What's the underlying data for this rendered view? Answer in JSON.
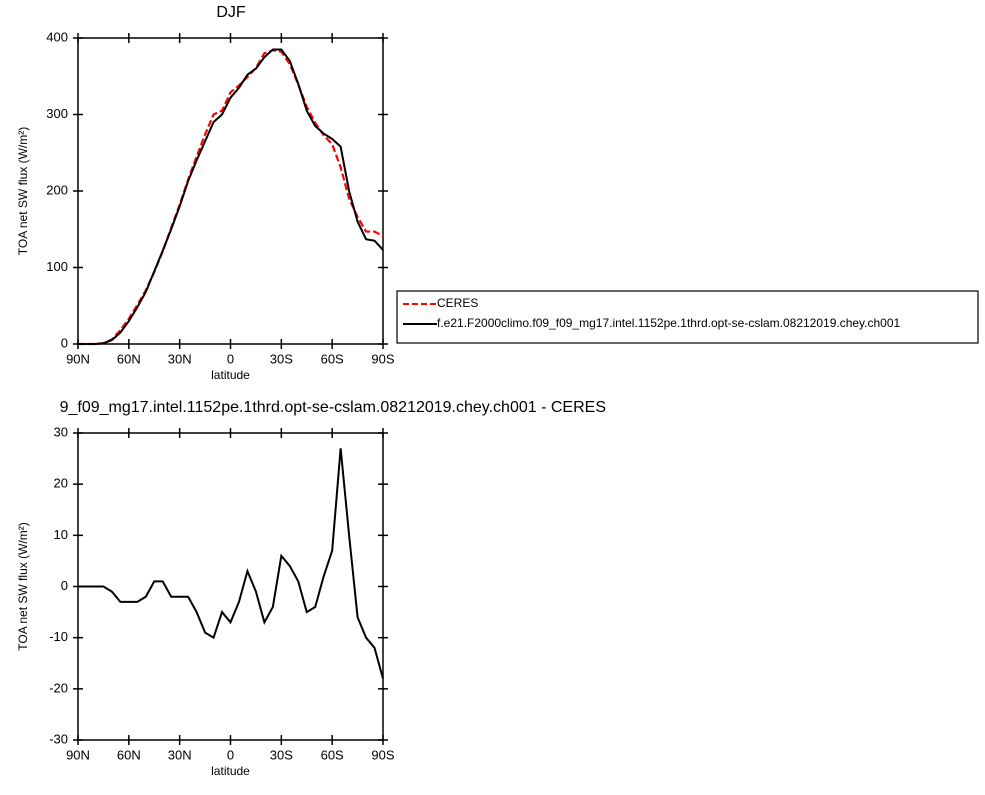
{
  "chart_data": [
    {
      "type": "line",
      "title": "DJF",
      "xlabel": "latitude",
      "ylabel": "TOA net SW flux (W/m²)",
      "x": [
        90,
        85,
        80,
        75,
        70,
        65,
        60,
        55,
        50,
        45,
        40,
        35,
        30,
        25,
        20,
        15,
        10,
        5,
        0,
        -5,
        -10,
        -15,
        -20,
        -25,
        -30,
        -35,
        -40,
        -45,
        -50,
        -55,
        -60,
        -65,
        -70,
        -75,
        -80,
        -85,
        -90
      ],
      "series": [
        {
          "name": "CERES",
          "color": "#ff0000",
          "dash": true,
          "values": [
            0,
            0,
            0,
            1,
            6,
            18,
            33,
            51,
            70,
            94,
            121,
            152,
            182,
            215,
            245,
            274,
            300,
            305,
            329,
            338,
            349,
            361,
            380,
            384,
            382,
            366,
            339,
            310,
            289,
            273,
            261,
            231,
            190,
            166,
            147,
            147,
            141
          ]
        },
        {
          "name": "f.e21.F2000climo.f09_f09_mg17.intel.1152pe.1thrd.opt-se-cslam.08212019.chey.ch001",
          "color": "#000000",
          "dash": false,
          "values": [
            0,
            0,
            0,
            1,
            5,
            15,
            30,
            48,
            68,
            95,
            122,
            150,
            180,
            213,
            240,
            265,
            290,
            300,
            322,
            335,
            352,
            360,
            375,
            385,
            385,
            370,
            340,
            305,
            285,
            275,
            268,
            258,
            200,
            160,
            137,
            135,
            123
          ]
        }
      ],
      "xlim": [
        90,
        -90
      ],
      "xticks": [
        {
          "value": 90,
          "label": "90N"
        },
        {
          "value": 60,
          "label": "60N"
        },
        {
          "value": 30,
          "label": "30N"
        },
        0,
        {
          "value": -30,
          "label": "30S"
        },
        {
          "value": -60,
          "label": "60S"
        },
        {
          "value": -90,
          "label": "90S"
        }
      ],
      "ylim": [
        0,
        400
      ],
      "yticks": [
        0,
        100,
        200,
        300,
        400
      ],
      "legend": "right"
    },
    {
      "type": "line",
      "title": "9_f09_mg17.intel.1152pe.1thrd.opt-se-cslam.08212019.chey.ch001 - CERES",
      "xlabel": "latitude",
      "ylabel": "TOA net SW flux (W/m²)",
      "x": [
        90,
        85,
        80,
        75,
        70,
        65,
        60,
        55,
        50,
        45,
        40,
        35,
        30,
        25,
        20,
        15,
        10,
        5,
        0,
        -5,
        -10,
        -15,
        -20,
        -25,
        -30,
        -35,
        -40,
        -45,
        -50,
        -55,
        -60,
        -65,
        -70,
        -75,
        -80,
        -85,
        -90
      ],
      "color": "#000000",
      "values": [
        0,
        0,
        0,
        0,
        -1,
        -3,
        -3,
        -3,
        -2,
        1,
        1,
        -2,
        -2,
        -2,
        -5,
        -9,
        -10,
        -5,
        -7,
        -3,
        3,
        -1,
        -7,
        -4,
        6,
        4,
        1,
        -5,
        -4,
        2,
        7,
        27,
        10,
        -6,
        -10,
        -12,
        -18
      ],
      "xlim": [
        90,
        -90
      ],
      "xticks": [
        {
          "value": 90,
          "label": "90N"
        },
        {
          "value": 60,
          "label": "60N"
        },
        {
          "value": 30,
          "label": "30N"
        },
        0,
        {
          "value": -30,
          "label": "30S"
        },
        {
          "value": -60,
          "label": "60S"
        },
        {
          "value": -90,
          "label": "90S"
        }
      ],
      "ylim": [
        -30,
        30
      ],
      "yticks": [
        -30,
        -20,
        -10,
        0,
        10,
        20,
        30
      ]
    }
  ]
}
